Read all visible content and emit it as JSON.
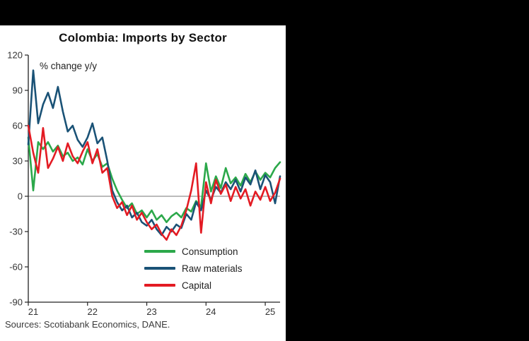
{
  "frame": {
    "background": "#000000",
    "panel_background": "#ffffff"
  },
  "chart_data": {
    "type": "line",
    "title": "Colombia: Imports by Sector",
    "annotation": "% change y/y",
    "source": "Sources: Scotiabank Economics, DANE.",
    "xlabel": "",
    "ylabel": "",
    "ylim": [
      -90,
      120
    ],
    "y_ticks": [
      120,
      90,
      60,
      30,
      0,
      -30,
      -60,
      -90
    ],
    "x_tick_labels": [
      "21",
      "22",
      "23",
      "24",
      "25"
    ],
    "x_start": "2021-01",
    "frequency": "monthly",
    "grid": false,
    "zero_line": true,
    "legend_position": "inside-bottom-center",
    "series": [
      {
        "name": "Consumption",
        "color": "#2ba84a",
        "values": [
          50,
          5,
          46,
          40,
          46,
          38,
          43,
          34,
          37,
          30,
          33,
          27,
          40,
          30,
          36,
          25,
          28,
          15,
          5,
          -3,
          -10,
          -6,
          -15,
          -12,
          -18,
          -12,
          -20,
          -16,
          -22,
          -17,
          -14,
          -18,
          -10,
          -13,
          -4,
          -9,
          28,
          4,
          17,
          7,
          24,
          11,
          16,
          9,
          19,
          12,
          21,
          14,
          20,
          16,
          24,
          29
        ]
      },
      {
        "name": "Raw materials",
        "color": "#1a5276",
        "values": [
          44,
          107,
          62,
          78,
          88,
          75,
          93,
          72,
          55,
          60,
          48,
          42,
          50,
          62,
          45,
          50,
          30,
          5,
          -5,
          -12,
          -8,
          -18,
          -14,
          -22,
          -25,
          -20,
          -28,
          -33,
          -26,
          -30,
          -24,
          -27,
          -15,
          -20,
          -5,
          -12,
          5,
          -3,
          8,
          3,
          12,
          6,
          14,
          4,
          16,
          10,
          22,
          6,
          18,
          12,
          -6,
          17
        ]
      },
      {
        "name": "Capital",
        "color": "#e31b23",
        "values": [
          60,
          37,
          20,
          58,
          24,
          32,
          42,
          30,
          45,
          34,
          28,
          38,
          46,
          28,
          40,
          20,
          24,
          0,
          -10,
          -5,
          -16,
          -8,
          -20,
          -14,
          -22,
          -28,
          -24,
          -32,
          -37,
          -28,
          -33,
          -25,
          -12,
          5,
          28,
          -31,
          12,
          -6,
          14,
          2,
          10,
          -4,
          8,
          -2,
          6,
          -8,
          4,
          -3,
          8,
          -4,
          3,
          15
        ]
      }
    ]
  }
}
